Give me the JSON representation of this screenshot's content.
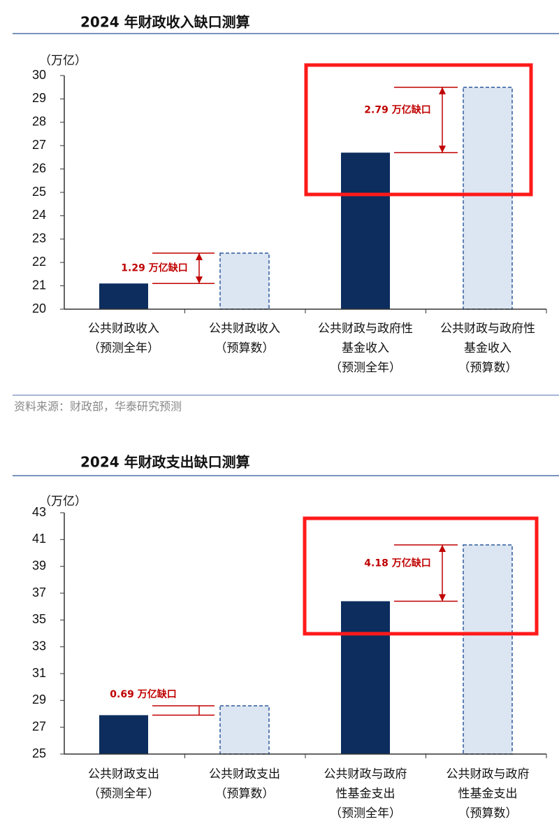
{
  "chart_data": [
    {
      "type": "bar",
      "title": "2024 年财政收入缺口测算",
      "y_label": "（万亿）",
      "categories": [
        [
          "公共财政收入",
          "（预测全年）"
        ],
        [
          "公共财政收入",
          "（预算数）"
        ],
        [
          "公共财政与政府性",
          "基金收入",
          "（预测全年）"
        ],
        [
          "公共财政与政府性",
          "基金收入",
          "（预算数）"
        ]
      ],
      "values": [
        21.1,
        22.4,
        26.7,
        29.5
      ],
      "colors": [
        "#0c2d5e",
        "#dce6f2",
        "#0c2d5e",
        "#dce6f2"
      ],
      "dashed": [
        false,
        true,
        false,
        true
      ],
      "ylim": [
        20,
        30
      ],
      "yticks": [
        20,
        21,
        22,
        23,
        24,
        25,
        26,
        27,
        28,
        29,
        30
      ],
      "annotations": [
        "1.29 万亿缺口",
        "2.79 万亿缺口"
      ],
      "source": "资料来源：财政部，华泰研究预测"
    },
    {
      "type": "bar",
      "title": "2024 年财政支出缺口测算",
      "y_label": "（万亿）",
      "categories": [
        [
          "公共财政支出",
          "（预测全年）"
        ],
        [
          "公共财政支出",
          "（预算数）"
        ],
        [
          "公共财政与政府",
          "性基金支出",
          "（预测全年）"
        ],
        [
          "公共财政与政府",
          "性基金支出",
          "（预算数）"
        ]
      ],
      "values": [
        27.9,
        28.6,
        36.4,
        40.6
      ],
      "colors": [
        "#0c2d5e",
        "#dce6f2",
        "#0c2d5e",
        "#dce6f2"
      ],
      "dashed": [
        false,
        true,
        false,
        true
      ],
      "ylim": [
        25,
        43
      ],
      "yticks": [
        25,
        27,
        29,
        31,
        33,
        35,
        37,
        39,
        41,
        43
      ],
      "annotations": [
        "0.69 万亿缺口",
        "4.18 万亿缺口"
      ]
    }
  ]
}
